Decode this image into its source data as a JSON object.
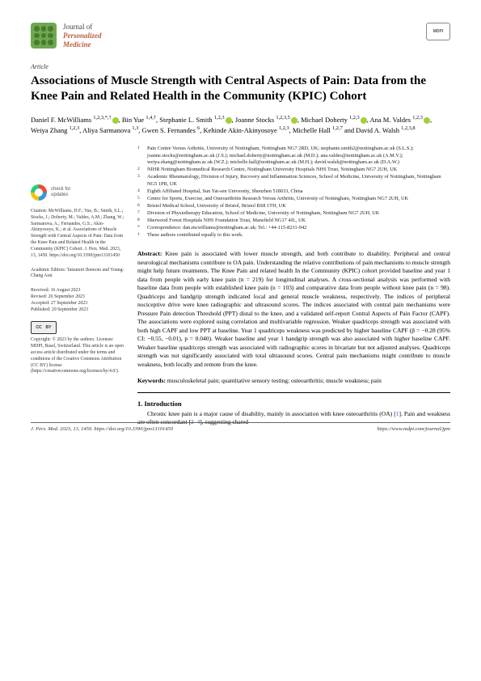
{
  "journal": {
    "line1": "Journal of",
    "line2": "Personalized",
    "line3": "Medicine"
  },
  "publisher_logo": "MDPI",
  "article_type": "Article",
  "title": "Associations of Muscle Strength with Central Aspects of Pain: Data from the Knee Pain and Related Health in the Community (KPIC) Cohort",
  "authors_html": "Daniel F. McWilliams <sup>1,2,3,*,†</sup><span class='orcid'></span>, Bin Yue <sup>1,4,†</sup>, Stephanie L. Smith <sup>1,2,3</sup><span class='orcid'></span>, Joanne Stocks <sup>1,2,3,5</sup><span class='orcid'></span>, Michael Doherty <sup>1,2,3</sup><span class='orcid'></span>, Ana M. Valdes <sup>1,2,3</sup><span class='orcid'></span>, Weiya Zhang <sup>1,2,3</sup>, Aliya Sarmanova <sup>1,3</sup>, Gwen S. Fernandes <sup>6</sup>, Kehinde Akin-Akinyosoye <sup>1,2,3</sup>, Michelle Hall <sup>1,2,7</sup> and David A. Walsh <sup>1,2,3,8</sup>",
  "affiliations": [
    {
      "n": "1",
      "t": "Pain Centre Versus Arthritis, University of Nottingham, Nottingham NG7 2RD, UK; stephanie.smith2@nottingham.ac.uk (S.L.S.); joanne.stocks@nottingham.ac.uk (J.S.); michael.doherty@nottingham.ac.uk (M.D.); ana.valdes@nottingham.ac.uk (A.M.V.); weiya.zhang@nottingham.ac.uk (W.Z.); michelle.hall@nottingham.ac.uk (M.H.); david.walsh@nottingham.ac.uk (D.A.W.)"
    },
    {
      "n": "2",
      "t": "NIHR Nottingham Biomedical Research Centre, Nottingham University Hospitals NHS Trust, Nottingham NG7 2UH, UK"
    },
    {
      "n": "3",
      "t": "Academic Rheumatology, Division of Injury, Recovery and Inflammation Sciences, School of Medicine, University of Nottingham, Nottingham NG5 1PB, UK"
    },
    {
      "n": "4",
      "t": "Eighth Affiliated Hospital, Sun Yat-sen University, Shenzhen 518033, China"
    },
    {
      "n": "5",
      "t": "Centre for Sports, Exercise, and Osteoarthritis Research Versus Arthritis, University of Nottingham, Nottingham NG7 2UH, UK"
    },
    {
      "n": "6",
      "t": "Bristol Medical School, University of Bristol, Bristol BS8 1TH, UK"
    },
    {
      "n": "7",
      "t": "Division of Physiotherapy Education, School of Medicine, University of Nottingham, Nottingham NG7 2UH, UK"
    },
    {
      "n": "8",
      "t": "Sherwood Forest Hospitals NHS Foundation Trust, Mansfield NG17 4JL, UK"
    },
    {
      "n": "*",
      "t": "Correspondence: dan.mcwilliams@nottingham.ac.uk; Tel.: +44-115-8231-942"
    },
    {
      "n": "†",
      "t": "These authors contributed equally to this work."
    }
  ],
  "check_updates": {
    "l1": "check for",
    "l2": "updates"
  },
  "citation": "Citation: McWilliams, D.F.; Yue, B.; Smith, S.L.; Stocks, J.; Doherty, M.; Valdes, A.M.; Zhang, W.; Sarmanova, A.; Fernandes, G.S.; Akin-Akinyosoye, K.; et al. Associations of Muscle Strength with Central Aspects of Pain: Data from the Knee Pain and Related Health in the Community (KPIC) Cohort. J. Pers. Med. 2023, 13, 1450. https://doi.org/10.3390/jpm13101450",
  "editors": "Academic Editors: Tatsunori Ikemoto and Young-Chang Arai",
  "dates": "Received: 16 August 2023\nRevised: 26 September 2023\nAccepted: 27 September 2023\nPublished: 29 September 2023",
  "copyright": "Copyright: © 2023 by the authors. Licensee MDPI, Basel, Switzerland. This article is an open access article distributed under the terms and conditions of the Creative Commons Attribution (CC BY) license (https://creativecommons.org/licenses/by/4.0/).",
  "abstract_label": "Abstract:",
  "abstract": "Knee pain is associated with lower muscle strength, and both contribute to disability. Peripheral and central neurological mechanisms contribute to OA pain. Understanding the relative contributions of pain mechanisms to muscle strength might help future treatments. The Knee Pain and related health In the Community (KPIC) cohort provided baseline and year 1 data from people with early knee pain (n = 219) for longitudinal analyses. A cross-sectional analysis was performed with baseline data from people with established knee pain (n = 103) and comparative data from people without knee pain (n = 98). Quadriceps and handgrip strength indicated local and general muscle weakness, respectively. The indices of peripheral nociceptive drive were knee radiographic and ultrasound scores. The indices associated with central pain mechanisms were Pressure Pain detection Threshold (PPT) distal to the knee, and a validated self-report Central Aspects of Pain Factor (CAPF). The associations were explored using correlation and multivariable regression. Weaker quadriceps strength was associated with both high CAPF and low PPT at baseline. Year 1 quadriceps weakness was predicted by higher baseline CAPF (β = −0.28 (95% CI: −0.55, −0.01), p = 0.040). Weaker baseline and year 1 handgrip strength was also associated with higher baseline CAPF. Weaker baseline quadriceps strength was associated with radiographic scores in bivariate but not adjusted analyses. Quadriceps strength was not significantly associated with total ultrasound scores. Central pain mechanisms might contribute to muscle weakness, both locally and remote from the knee.",
  "keywords_label": "Keywords:",
  "keywords": "musculoskeletal pain; quantitative sensory testing; osteoarthritis; muscle weakness; pain",
  "section1_heading": "1. Introduction",
  "section1_body": "Chronic knee pain is a major cause of disability, mainly in association with knee osteoarthritis (OA) [1]. Pain and weakness are often concordant [2–4], suggesting shared",
  "footer_left": "J. Pers. Med. 2023, 13, 1450. https://doi.org/10.3390/jpm13101450",
  "footer_right": "https://www.mdpi.com/journal/jpm"
}
